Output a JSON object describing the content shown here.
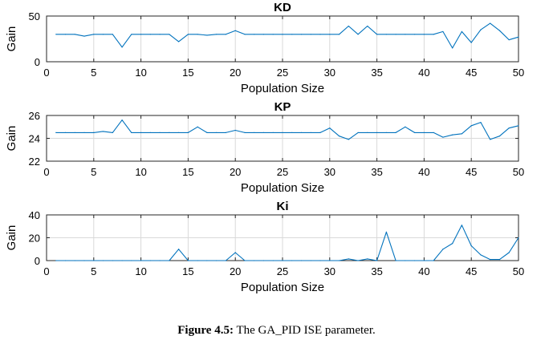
{
  "caption": {
    "label": "Figure 4.5:",
    "text": "The GA_PID  ISE parameter."
  },
  "colors": {
    "line": "#0072BD",
    "grid": "#d9d9d9",
    "axis": "#262626"
  },
  "chart_data": [
    {
      "type": "line",
      "title": "KD",
      "xlabel": "Population Size",
      "ylabel": "Gain",
      "xlim": [
        0,
        50
      ],
      "ylim": [
        0,
        50
      ],
      "xticks": [
        0,
        5,
        10,
        15,
        20,
        25,
        30,
        35,
        40,
        45,
        50
      ],
      "yticks": [
        0,
        50
      ],
      "grid": true,
      "x": [
        1,
        2,
        3,
        4,
        5,
        6,
        7,
        8,
        9,
        10,
        11,
        12,
        13,
        14,
        15,
        16,
        17,
        18,
        19,
        20,
        21,
        22,
        23,
        24,
        25,
        26,
        27,
        28,
        29,
        30,
        31,
        32,
        33,
        34,
        35,
        36,
        37,
        38,
        39,
        40,
        41,
        42,
        43,
        44,
        45,
        46,
        47,
        48,
        49,
        50
      ],
      "values": [
        30,
        30,
        30,
        28,
        30,
        30,
        30,
        16,
        30,
        30,
        30,
        30,
        30,
        22,
        30,
        30,
        29,
        30,
        30,
        34,
        30,
        30,
        30,
        30,
        30,
        30,
        30,
        30,
        30,
        30,
        30,
        39,
        30,
        39,
        30,
        30,
        30,
        30,
        30,
        30,
        30,
        33,
        15,
        33,
        21,
        35,
        42,
        34,
        24,
        27
      ]
    },
    {
      "type": "line",
      "title": "KP",
      "xlabel": "Population Size",
      "ylabel": "Gain",
      "xlim": [
        0,
        50
      ],
      "ylim": [
        22,
        26
      ],
      "xticks": [
        0,
        5,
        10,
        15,
        20,
        25,
        30,
        35,
        40,
        45,
        50
      ],
      "yticks": [
        22,
        24,
        26
      ],
      "grid": true,
      "x": [
        1,
        2,
        3,
        4,
        5,
        6,
        7,
        8,
        9,
        10,
        11,
        12,
        13,
        14,
        15,
        16,
        17,
        18,
        19,
        20,
        21,
        22,
        23,
        24,
        25,
        26,
        27,
        28,
        29,
        30,
        31,
        32,
        33,
        34,
        35,
        36,
        37,
        38,
        39,
        40,
        41,
        42,
        43,
        44,
        45,
        46,
        47,
        48,
        49,
        50
      ],
      "values": [
        24.5,
        24.5,
        24.5,
        24.5,
        24.5,
        24.6,
        24.5,
        25.6,
        24.5,
        24.5,
        24.5,
        24.5,
        24.5,
        24.5,
        24.5,
        25.0,
        24.5,
        24.5,
        24.5,
        24.7,
        24.5,
        24.5,
        24.5,
        24.5,
        24.5,
        24.5,
        24.5,
        24.5,
        24.5,
        24.9,
        24.2,
        23.9,
        24.5,
        24.5,
        24.5,
        24.5,
        24.5,
        25.0,
        24.5,
        24.5,
        24.5,
        24.1,
        24.3,
        24.4,
        25.1,
        25.4,
        23.9,
        24.2,
        24.9,
        25.1
      ]
    },
    {
      "type": "line",
      "title": "Ki",
      "xlabel": "Population Size",
      "ylabel": "Gain",
      "xlim": [
        0,
        50
      ],
      "ylim": [
        0,
        40
      ],
      "xticks": [
        0,
        5,
        10,
        15,
        20,
        25,
        30,
        35,
        40,
        45,
        50
      ],
      "yticks": [
        0,
        20,
        40
      ],
      "grid": true,
      "x": [
        1,
        2,
        3,
        4,
        5,
        6,
        7,
        8,
        9,
        10,
        11,
        12,
        13,
        14,
        15,
        16,
        17,
        18,
        19,
        20,
        21,
        22,
        23,
        24,
        25,
        26,
        27,
        28,
        29,
        30,
        31,
        32,
        33,
        34,
        35,
        36,
        37,
        38,
        39,
        40,
        41,
        42,
        43,
        44,
        45,
        46,
        47,
        48,
        49,
        50
      ],
      "values": [
        0,
        0,
        0,
        0,
        0,
        0,
        0,
        0,
        0,
        0,
        0,
        0,
        0,
        10,
        0,
        0,
        0,
        0,
        0,
        7,
        0,
        0,
        0,
        0,
        0,
        0,
        0,
        0,
        0,
        0,
        0,
        1.5,
        0,
        1.5,
        0,
        25,
        0,
        0,
        0,
        0,
        0,
        10,
        15,
        31,
        13,
        5,
        1,
        1,
        7,
        20
      ]
    }
  ]
}
